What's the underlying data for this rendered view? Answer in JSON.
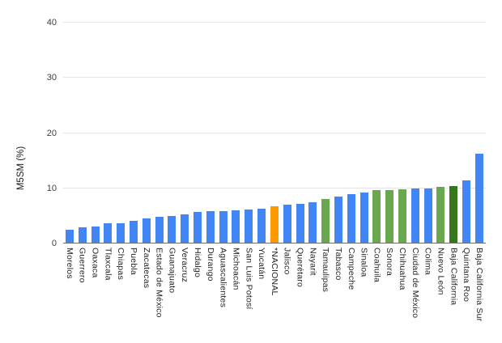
{
  "colors": {
    "background": "#FFFFFF",
    "gridline": "#E4E4E4",
    "axis_line": "#6B6B6B",
    "tick_text": "#3C3C3C",
    "label_text": "#1F1F1F"
  },
  "chart_data": {
    "type": "bar",
    "title": "",
    "xlabel": "",
    "ylabel": "M5SM (%)",
    "ylim": [
      0,
      40
    ],
    "yticks": [
      0,
      10,
      20,
      30,
      40
    ],
    "grid": true,
    "legend": "none",
    "categories": [
      "Morelos",
      "Guerrero",
      "Oaxaca",
      "Tlaxcala",
      "Chiapas",
      "Puebla",
      "Zacatecas",
      "Estado de México",
      "Guanajuato",
      "Veracruz",
      "Hidalgo",
      "Durango",
      "Aguascalientes",
      "Michoacán",
      "San Luis Potosí",
      "Yucatán",
      "*NACIONAL",
      "Jalisco",
      "Querétaro",
      "Nayarit",
      "Tamaulipas",
      "Tabasco",
      "Campeche",
      "Sinaloa",
      "Coahuila",
      "Sonora",
      "Chihuahua",
      "Ciudad de México",
      "Colima",
      "Nuevo León",
      "Baja California",
      "Quintana Roo",
      "Baja California Sur"
    ],
    "values": [
      2.5,
      3.0,
      3.1,
      3.6,
      3.7,
      4.1,
      4.6,
      4.8,
      5.0,
      5.3,
      5.7,
      5.8,
      5.9,
      6.0,
      6.2,
      6.3,
      6.7,
      7.0,
      7.2,
      7.5,
      8.1,
      8.5,
      9.0,
      9.2,
      9.6,
      9.7,
      9.8,
      9.9,
      10.0,
      10.2,
      10.4,
      11.5,
      16.3
    ],
    "bar_color_roles": [
      "blue",
      "blue",
      "blue",
      "blue",
      "blue",
      "blue",
      "blue",
      "blue",
      "blue",
      "blue",
      "blue",
      "blue",
      "blue",
      "blue",
      "blue",
      "blue",
      "orange",
      "blue",
      "blue",
      "blue",
      "green",
      "blue",
      "blue",
      "blue",
      "green",
      "green",
      "green",
      "blue",
      "blue",
      "green",
      "dark_green",
      "blue",
      "blue"
    ],
    "palette": {
      "blue": "#4285F4",
      "orange": "#FF9900",
      "green": "#6AA84F",
      "dark_green": "#38761D"
    },
    "highlighted_category": "*NACIONAL"
  }
}
